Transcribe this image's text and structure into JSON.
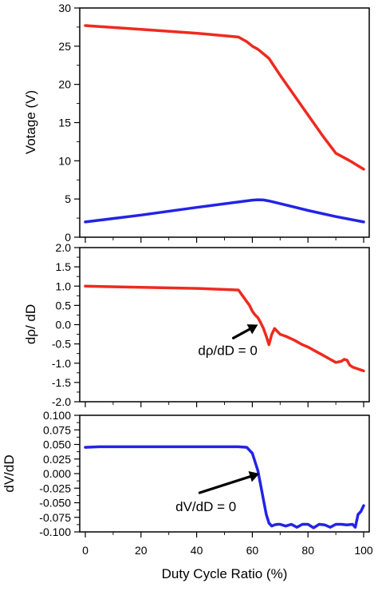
{
  "chart_data": [
    {
      "type": "line",
      "ylabel": "Votage (V)",
      "ylim": [
        0,
        30
      ],
      "xlim": [
        -2,
        102
      ],
      "yticks": [
        0,
        5,
        10,
        15,
        20,
        25,
        30
      ],
      "ytick_labels": [
        "0",
        "5",
        "10",
        "15",
        "20",
        "25",
        "30"
      ],
      "series": [
        {
          "color": "#ee2a1f",
          "x": [
            0,
            20,
            40,
            55,
            58,
            60,
            62,
            64,
            66,
            70,
            75,
            80,
            85,
            90,
            95,
            100
          ],
          "y": [
            27.7,
            27.2,
            26.7,
            26.2,
            25.6,
            25.0,
            24.6,
            24.0,
            23.4,
            21.2,
            18.6,
            16.0,
            13.4,
            11.0,
            10.0,
            8.9
          ]
        },
        {
          "color": "#2323e6",
          "x": [
            0,
            20,
            40,
            60,
            62,
            64,
            66,
            70,
            80,
            90,
            100
          ],
          "y": [
            2.0,
            2.9,
            3.9,
            4.85,
            4.9,
            4.87,
            4.75,
            4.4,
            3.5,
            2.7,
            2.0
          ]
        }
      ]
    },
    {
      "type": "line",
      "ylabel": "dρ/ dD",
      "ylim": [
        -2.0,
        2.0
      ],
      "xlim": [
        -2,
        102
      ],
      "yticks": [
        -2.0,
        -1.5,
        -1.0,
        -0.5,
        0.0,
        0.5,
        1.0,
        1.5,
        2.0
      ],
      "ytick_labels": [
        "-2.0",
        "-1.5",
        "-1.0",
        "-0.5",
        "0.0",
        "0.5",
        "1.0",
        "1.5",
        "2.0"
      ],
      "annotation": {
        "text": "dρ/dD = 0",
        "x": 62,
        "y": 0.0
      },
      "series": [
        {
          "color": "#ee2a1f",
          "x": [
            0,
            20,
            40,
            55,
            57,
            59,
            60,
            61,
            62,
            63,
            64,
            65,
            66,
            67,
            68,
            70,
            72,
            75,
            78,
            80,
            83,
            85,
            88,
            90,
            92,
            93,
            94,
            95,
            96,
            98,
            100
          ],
          "y": [
            1.0,
            0.97,
            0.94,
            0.9,
            0.7,
            0.5,
            0.35,
            0.25,
            0.18,
            0.05,
            -0.1,
            -0.3,
            -0.52,
            -0.25,
            -0.1,
            -0.25,
            -0.3,
            -0.4,
            -0.52,
            -0.58,
            -0.7,
            -0.78,
            -0.9,
            -0.98,
            -0.95,
            -0.9,
            -0.92,
            -1.05,
            -1.1,
            -1.15,
            -1.2
          ]
        }
      ]
    },
    {
      "type": "line",
      "ylabel": "dV/dD",
      "xlabel": "Duty Cycle Ratio (%)",
      "ylim": [
        -0.1,
        0.1
      ],
      "xlim": [
        -2,
        102
      ],
      "xticks": [
        0,
        20,
        40,
        60,
        80,
        100
      ],
      "xtick_labels": [
        "0",
        "20",
        "40",
        "60",
        "80",
        "100"
      ],
      "yticks": [
        -0.1,
        -0.075,
        -0.05,
        -0.025,
        0.0,
        0.025,
        0.05,
        0.075,
        0.1
      ],
      "ytick_labels": [
        "-0.100",
        "-0.075",
        "-0.050",
        "-0.025",
        "0.000",
        "0.025",
        "0.050",
        "0.075",
        "0.100"
      ],
      "annotation": {
        "text": "dV/dD = 0",
        "x": 62.5,
        "y": 0.0
      },
      "series": [
        {
          "color": "#2323e6",
          "x": [
            0,
            5,
            20,
            40,
            55,
            58,
            60,
            62,
            63,
            64,
            65,
            66,
            67,
            68,
            69,
            70,
            72,
            74,
            76,
            78,
            80,
            82,
            84,
            86,
            88,
            90,
            92,
            94,
            96,
            97,
            98,
            99,
            100
          ],
          "y": [
            0.045,
            0.046,
            0.046,
            0.046,
            0.046,
            0.045,
            0.035,
            0.005,
            -0.02,
            -0.045,
            -0.07,
            -0.085,
            -0.09,
            -0.088,
            -0.087,
            -0.087,
            -0.09,
            -0.087,
            -0.092,
            -0.087,
            -0.087,
            -0.093,
            -0.087,
            -0.088,
            -0.092,
            -0.087,
            -0.087,
            -0.088,
            -0.087,
            -0.092,
            -0.07,
            -0.065,
            -0.055
          ]
        }
      ]
    }
  ]
}
